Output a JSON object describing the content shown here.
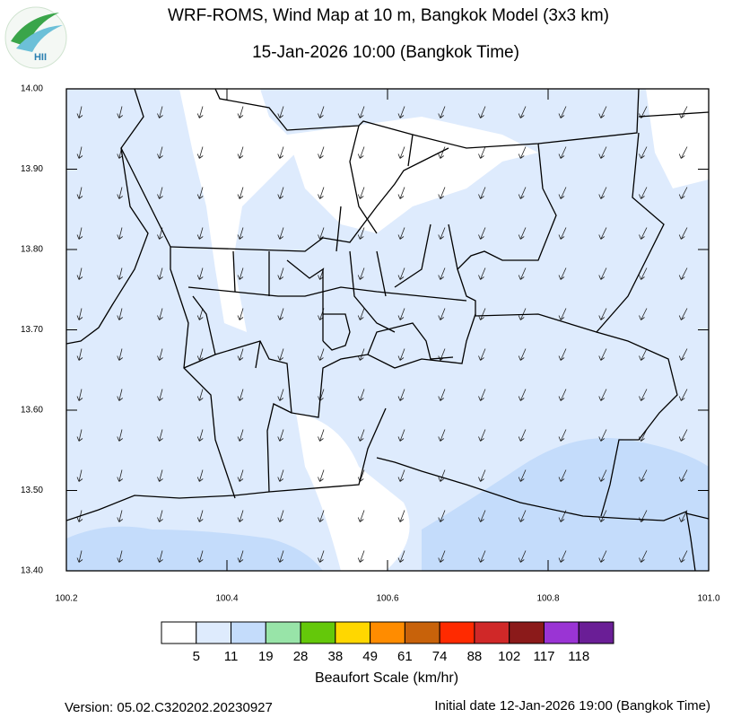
{
  "header": {
    "title": "WRF-ROMS, Wind Map at 10 m, Bangkok Model (3x3 km)",
    "subtitle": "15-Jan-2026 10:00 (Bangkok Time)",
    "logo_text": "HII"
  },
  "map": {
    "xlim": [
      100.2,
      {
        "value": 101,
        "label": "101.0"
      }
    ],
    "ylim": [
      {
        "value": 13.4,
        "label": "13.40"
      },
      {
        "value": 14,
        "label": "14.00"
      }
    ],
    "xticks": [
      100.2,
      100.4,
      100.6,
      100.8,
      {
        "value": 101,
        "label": "101.0"
      }
    ],
    "yticks": [
      {
        "value": 13.4,
        "label": "13.40"
      },
      {
        "value": 13.5,
        "label": "13.50"
      },
      {
        "value": 13.6,
        "label": "13.60"
      },
      {
        "value": 13.7,
        "label": "13.70"
      },
      {
        "value": 13.8,
        "label": "13.80"
      },
      {
        "value": 13.9,
        "label": "13.90"
      },
      {
        "value": 14,
        "label": "14.00"
      }
    ]
  },
  "colorbar": {
    "title": "Beaufort Scale (km/hr)",
    "colors": [
      "#ffffff",
      "#deebfd",
      "#c4dcfb",
      "#98e4a8",
      "#64c80a",
      "#ffd700",
      "#ff8c00",
      "#c8620a",
      "#ff2a00",
      "#d02828",
      "#8b1a1a",
      "#9a34d4",
      "#6a1e96"
    ],
    "labels": [
      5,
      11,
      19,
      28,
      38,
      49,
      61,
      74,
      88,
      102,
      117,
      118
    ]
  },
  "footer": {
    "version": "Version: 05.02.C320202.20230927",
    "initial_date": "Initial date 12-Jan-2026 19:00 (Bangkok Time)"
  }
}
